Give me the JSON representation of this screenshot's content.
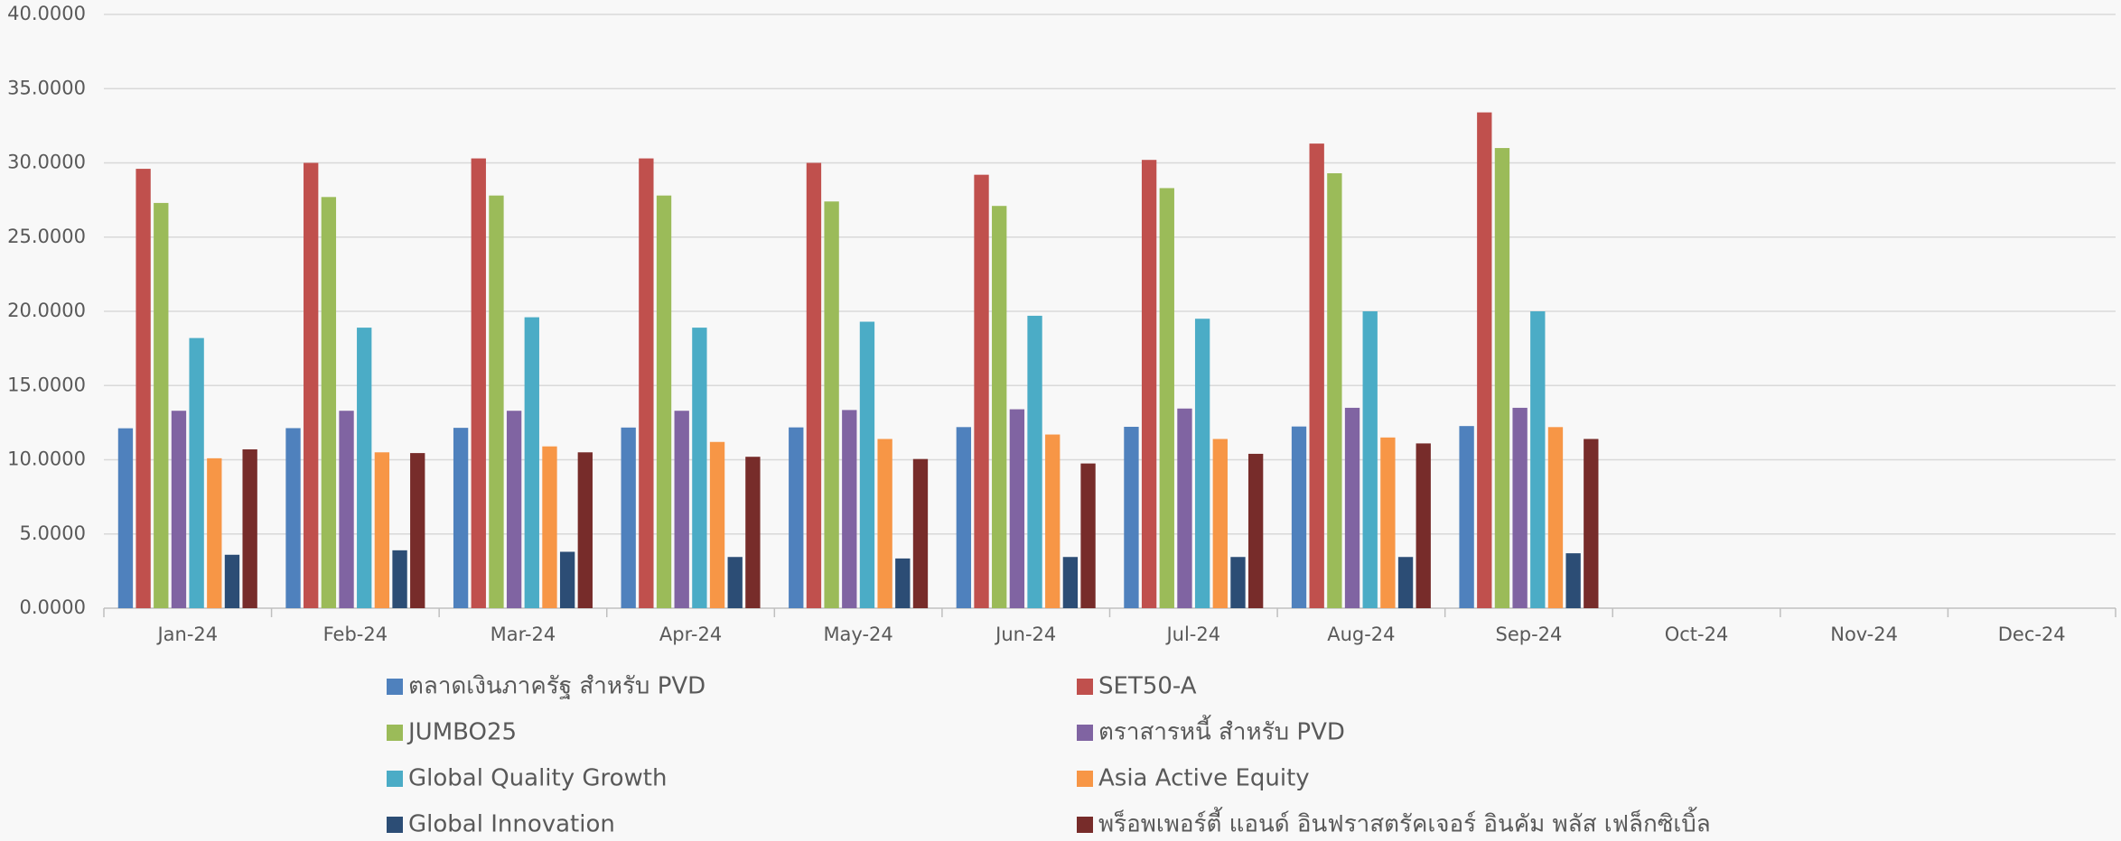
{
  "chart_data": {
    "type": "bar",
    "categories": [
      "Jan-24",
      "Feb-24",
      "Mar-24",
      "Apr-24",
      "May-24",
      "Jun-24",
      "Jul-24",
      "Aug-24",
      "Sep-24",
      "Oct-24",
      "Nov-24",
      "Dec-24"
    ],
    "series": [
      {
        "name": "ตลาดเงินภาครัฐ สำหรับ PVD",
        "color": "#4f81bd",
        "values": [
          12.12,
          12.13,
          12.15,
          12.17,
          12.18,
          12.2,
          12.22,
          12.24,
          12.27,
          null,
          null,
          null
        ]
      },
      {
        "name": "SET50-A",
        "color": "#c0504d",
        "values": [
          29.6,
          30.0,
          30.3,
          30.3,
          30.0,
          29.2,
          30.2,
          31.3,
          33.4,
          null,
          null,
          null
        ]
      },
      {
        "name": "JUMBO25",
        "color": "#9bbb59",
        "values": [
          27.3,
          27.7,
          27.8,
          27.8,
          27.4,
          27.1,
          28.3,
          29.3,
          31.0,
          null,
          null,
          null
        ]
      },
      {
        "name": "ตราสารหนี้ สำหรับ PVD",
        "color": "#8064a2",
        "values": [
          13.3,
          13.3,
          13.3,
          13.3,
          13.35,
          13.4,
          13.45,
          13.5,
          13.5,
          null,
          null,
          null
        ]
      },
      {
        "name": "Global Quality Growth",
        "color": "#4bacc6",
        "values": [
          18.2,
          18.9,
          19.6,
          18.9,
          19.3,
          19.7,
          19.5,
          20.0,
          20.0,
          null,
          null,
          null
        ]
      },
      {
        "name": "Asia Active Equity",
        "color": "#f79646",
        "values": [
          10.1,
          10.5,
          10.9,
          11.2,
          11.4,
          11.7,
          11.4,
          11.5,
          12.2,
          null,
          null,
          null
        ]
      },
      {
        "name": "Global Innovation",
        "color": "#2c4d75",
        "values": [
          3.6,
          3.9,
          3.8,
          3.45,
          3.35,
          3.45,
          3.45,
          3.45,
          3.7,
          null,
          null,
          null
        ]
      },
      {
        "name": "พร็อพเพอร์ตี้ แอนด์ อินฟราสตรัคเจอร์ อินคัม พลัส เฟล็กซิเบิ้ล",
        "color": "#772c2a",
        "values": [
          10.7,
          10.45,
          10.5,
          10.2,
          10.05,
          9.75,
          10.4,
          11.1,
          11.4,
          null,
          null,
          null
        ]
      }
    ],
    "ylim": [
      0,
      40
    ],
    "yticks": [
      {
        "value": 0,
        "label": "0.0000"
      },
      {
        "value": 5,
        "label": "5.0000"
      },
      {
        "value": 10,
        "label": "10.0000"
      },
      {
        "value": 15,
        "label": "15.0000"
      },
      {
        "value": 20,
        "label": "20.0000"
      },
      {
        "value": 25,
        "label": "25.0000"
      },
      {
        "value": 30,
        "label": "30.0000"
      },
      {
        "value": 35,
        "label": "35.0000"
      },
      {
        "value": 40,
        "label": "40.0000"
      }
    ],
    "grid": true
  }
}
